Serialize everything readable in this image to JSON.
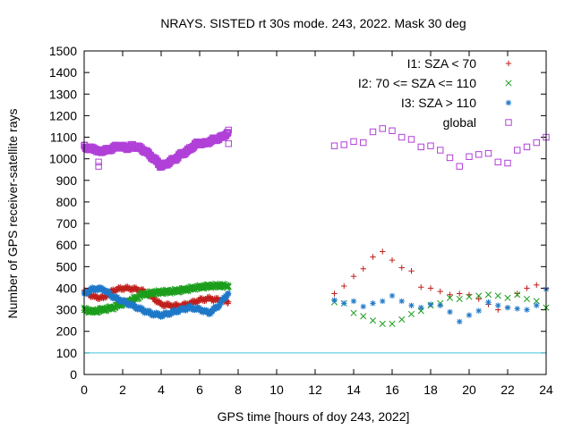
{
  "chart_data": {
    "type": "scatter",
    "title": "NRAYS. SISTED rt 30s mode. 243, 2022. Mask 30 deg",
    "xlabel": "GPS time [hours of doy 243, 2022]",
    "ylabel": "Number of GPS receiver-satellite rays",
    "xlim": [
      0,
      24
    ],
    "ylim": [
      0,
      1500
    ],
    "x_ticks": [
      "0",
      "2",
      "4",
      "6",
      "8",
      "10",
      "12",
      "14",
      "16",
      "18",
      "20",
      "22",
      "24"
    ],
    "y_ticks": [
      "0",
      "100",
      "200",
      "300",
      "400",
      "500",
      "600",
      "700",
      "800",
      "900",
      "1000",
      "1100",
      "1200",
      "1300",
      "1400",
      "1500"
    ],
    "legend_position": "top-right",
    "reference_line": {
      "y": 100,
      "color": "#3fc8d8"
    },
    "series": [
      {
        "name": "I1: SZA < 70",
        "marker": "plus",
        "color": "#c0201c",
        "dense_points": [
          [
            0,
            385
          ],
          [
            0.5,
            360
          ],
          [
            1,
            355
          ],
          [
            1.5,
            390
          ],
          [
            2,
            400
          ],
          [
            2.5,
            398
          ],
          [
            3,
            390
          ],
          [
            3.5,
            360
          ],
          [
            4,
            325
          ],
          [
            4.5,
            320
          ],
          [
            5,
            318
          ],
          [
            5.5,
            330
          ],
          [
            6,
            345
          ],
          [
            6.5,
            352
          ],
          [
            7,
            345
          ],
          [
            7.5,
            335
          ]
        ],
        "sparse_points": [
          [
            13,
            375
          ],
          [
            13.5,
            410
          ],
          [
            14,
            455
          ],
          [
            14.5,
            490
          ],
          [
            15,
            545
          ],
          [
            15.5,
            570
          ],
          [
            16,
            530
          ],
          [
            16.5,
            495
          ],
          [
            17,
            480
          ],
          [
            17.5,
            405
          ],
          [
            18,
            400
          ],
          [
            18.5,
            385
          ],
          [
            19,
            370
          ],
          [
            19.5,
            375
          ],
          [
            20,
            370
          ],
          [
            20.5,
            350
          ],
          [
            21,
            325
          ],
          [
            21.5,
            300
          ],
          [
            22,
            310
          ],
          [
            22.5,
            375
          ],
          [
            23,
            400
          ],
          [
            23.5,
            415
          ],
          [
            24,
            400
          ]
        ]
      },
      {
        "name": "I2: 70 <= SZA <= 110",
        "marker": "cross",
        "color": "#1c9e1c",
        "dense_points": [
          [
            0,
            300
          ],
          [
            0.5,
            292
          ],
          [
            1,
            302
          ],
          [
            1.5,
            310
          ],
          [
            2,
            330
          ],
          [
            2.5,
            345
          ],
          [
            3,
            370
          ],
          [
            3.5,
            378
          ],
          [
            4,
            382
          ],
          [
            4.5,
            385
          ],
          [
            5,
            390
          ],
          [
            5.5,
            398
          ],
          [
            6,
            405
          ],
          [
            6.5,
            410
          ],
          [
            7,
            412
          ],
          [
            7.5,
            410
          ]
        ],
        "sparse_points": [
          [
            13,
            335
          ],
          [
            13.5,
            330
          ],
          [
            14,
            285
          ],
          [
            14.5,
            270
          ],
          [
            15,
            250
          ],
          [
            15.5,
            235
          ],
          [
            16,
            235
          ],
          [
            16.5,
            255
          ],
          [
            17,
            280
          ],
          [
            17.5,
            295
          ],
          [
            18,
            320
          ],
          [
            18.5,
            330
          ],
          [
            19,
            355
          ],
          [
            19.5,
            350
          ],
          [
            20,
            360
          ],
          [
            20.5,
            365
          ],
          [
            21,
            370
          ],
          [
            21.5,
            365
          ],
          [
            22,
            355
          ],
          [
            22.5,
            370
          ],
          [
            23,
            350
          ],
          [
            23.5,
            340
          ],
          [
            24,
            310
          ]
        ]
      },
      {
        "name": "I3: SZA > 110",
        "marker": "star",
        "color": "#1f78c8",
        "dense_points": [
          [
            0,
            375
          ],
          [
            0.5,
            398
          ],
          [
            1,
            395
          ],
          [
            1.5,
            360
          ],
          [
            2,
            340
          ],
          [
            2.5,
            320
          ],
          [
            3,
            300
          ],
          [
            3.5,
            282
          ],
          [
            4,
            275
          ],
          [
            4.5,
            285
          ],
          [
            5,
            300
          ],
          [
            5.5,
            310
          ],
          [
            6,
            302
          ],
          [
            6.5,
            285
          ],
          [
            7,
            320
          ],
          [
            7.5,
            380
          ]
        ],
        "sparse_points": [
          [
            13,
            345
          ],
          [
            13.5,
            330
          ],
          [
            14,
            340
          ],
          [
            14.5,
            315
          ],
          [
            15,
            330
          ],
          [
            15.5,
            340
          ],
          [
            16,
            365
          ],
          [
            16.5,
            340
          ],
          [
            17,
            320
          ],
          [
            17.5,
            310
          ],
          [
            18,
            325
          ],
          [
            18.5,
            320
          ],
          [
            19,
            290
          ],
          [
            19.5,
            245
          ],
          [
            20,
            275
          ],
          [
            20.5,
            295
          ],
          [
            21,
            335
          ],
          [
            21.5,
            320
          ],
          [
            22,
            310
          ],
          [
            22.5,
            305
          ],
          [
            23,
            300
          ],
          [
            23.5,
            320
          ],
          [
            24,
            395
          ]
        ]
      },
      {
        "name": "global",
        "marker": "square",
        "color": "#b040d8",
        "dense_points": [
          [
            0,
            1060
          ],
          [
            0.25,
            1045
          ],
          [
            0.5,
            1050
          ],
          [
            0.75,
            1030
          ],
          [
            1,
            1040
          ],
          [
            1.25,
            1040
          ],
          [
            1.5,
            1050
          ],
          [
            1.75,
            1060
          ],
          [
            2,
            1055
          ],
          [
            2.25,
            1050
          ],
          [
            2.5,
            1060
          ],
          [
            2.75,
            1055
          ],
          [
            3,
            1045
          ],
          [
            3.25,
            1030
          ],
          [
            3.5,
            1010
          ],
          [
            3.75,
            990
          ],
          [
            4,
            965
          ],
          [
            4.25,
            975
          ],
          [
            4.5,
            990
          ],
          [
            4.75,
            1000
          ],
          [
            5,
            1020
          ],
          [
            5.25,
            1030
          ],
          [
            5.5,
            1045
          ],
          [
            5.75,
            1065
          ],
          [
            6,
            1075
          ],
          [
            6.25,
            1070
          ],
          [
            6.5,
            1080
          ],
          [
            6.75,
            1090
          ],
          [
            7,
            1095
          ],
          [
            7.25,
            1105
          ],
          [
            7.5,
            1125
          ]
        ],
        "outliers": [
          [
            0.75,
            965
          ],
          [
            0.75,
            985
          ],
          [
            7.5,
            1070
          ]
        ],
        "sparse_points": [
          [
            13,
            1060
          ],
          [
            13.5,
            1065
          ],
          [
            14,
            1080
          ],
          [
            14.5,
            1075
          ],
          [
            15,
            1125
          ],
          [
            15.5,
            1140
          ],
          [
            16,
            1130
          ],
          [
            16.5,
            1100
          ],
          [
            17,
            1090
          ],
          [
            17.5,
            1055
          ],
          [
            18,
            1060
          ],
          [
            18.5,
            1040
          ],
          [
            19,
            1005
          ],
          [
            19.5,
            965
          ],
          [
            20,
            1010
          ],
          [
            20.5,
            1020
          ],
          [
            21,
            1025
          ],
          [
            21.5,
            985
          ],
          [
            22,
            980
          ],
          [
            22.5,
            1040
          ],
          [
            23,
            1055
          ],
          [
            23.5,
            1075
          ],
          [
            24,
            1100
          ]
        ]
      }
    ]
  }
}
